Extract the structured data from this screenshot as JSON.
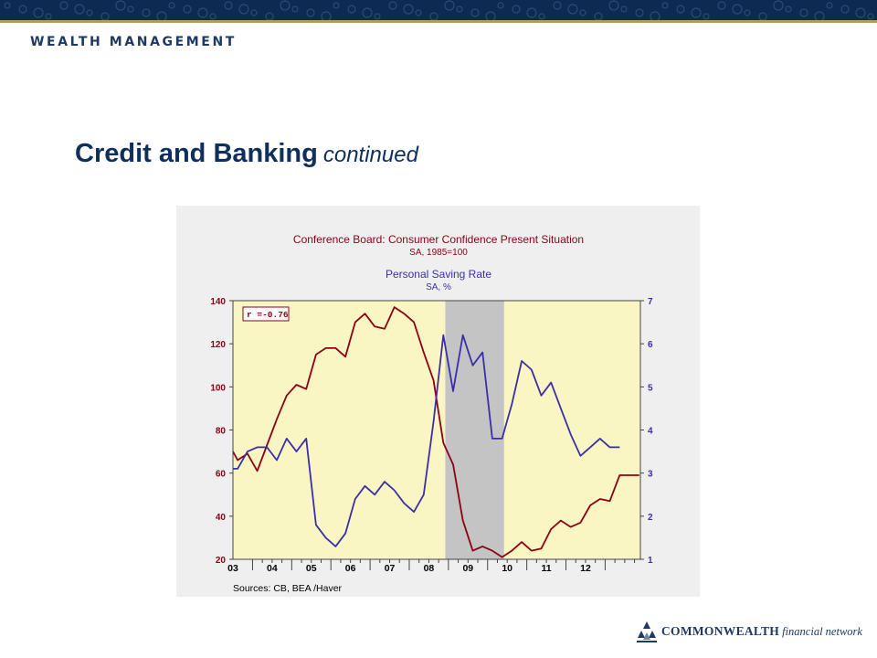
{
  "header": {
    "brand": "WEALTH MANAGEMENT"
  },
  "slide": {
    "title": "Credit and Banking",
    "subtitle": "continued"
  },
  "footer": {
    "logo_main": "COMMONWEALTH",
    "logo_sub": "financial network"
  },
  "colors": {
    "navy": "#0d2a52",
    "gold": "#b49a5c",
    "series_confidence": "#8b0016",
    "series_saving": "#3a2fa8",
    "plot_background": "#f9f6c4",
    "recession_shade": "#c4c4c4"
  },
  "chart_data": {
    "type": "line",
    "title": "Conference Board: Consumer Confidence Present Situation",
    "title_sub": "SA, 1985=100",
    "title2": "Personal Saving Rate",
    "title2_sub": "SA, %",
    "correlation_label": "r =-0.76",
    "source": "Sources:  CB, BEA /Haver",
    "x_tick_labels": [
      "03",
      "04",
      "05",
      "06",
      "07",
      "08",
      "09",
      "10",
      "11",
      "12"
    ],
    "x_tick_years": [
      2003,
      2004,
      2005,
      2006,
      2007,
      2008,
      2009,
      2010,
      2011,
      2012
    ],
    "xlim": [
      2002.5,
      2012.9
    ],
    "recession": [
      2007.92,
      2009.42
    ],
    "left_axis": {
      "ylim": [
        20,
        140
      ],
      "ticks": [
        20,
        40,
        60,
        80,
        100,
        120,
        140
      ]
    },
    "right_axis": {
      "ylim": [
        1,
        7
      ],
      "ticks": [
        1,
        2,
        3,
        4,
        5,
        6,
        7
      ]
    },
    "grid": false,
    "series": [
      {
        "name": "Conference Board: Consumer Confidence Present Situation",
        "axis": "left",
        "x": [
          2002.5,
          2002.62,
          2002.87,
          2003.12,
          2003.37,
          2003.62,
          2003.87,
          2004.12,
          2004.37,
          2004.62,
          2004.87,
          2005.12,
          2005.37,
          2005.62,
          2005.87,
          2006.12,
          2006.37,
          2006.62,
          2006.87,
          2007.12,
          2007.37,
          2007.62,
          2007.87,
          2008.12,
          2008.37,
          2008.62,
          2008.87,
          2009.12,
          2009.37,
          2009.62,
          2009.87,
          2010.12,
          2010.37,
          2010.62,
          2010.87,
          2011.12,
          2011.37,
          2011.62,
          2011.87,
          2012.12,
          2012.37,
          2012.62,
          2012.87
        ],
        "values": [
          70,
          66,
          69,
          61,
          73,
          85,
          96,
          101,
          99,
          115,
          118,
          118,
          114,
          130,
          134,
          128,
          127,
          137,
          134,
          130,
          116,
          103,
          74,
          64,
          38,
          24,
          26,
          24,
          21,
          24,
          28,
          24,
          25,
          34,
          38,
          35,
          37,
          45,
          48,
          47,
          59,
          59,
          59
        ]
      },
      {
        "name": "Personal Saving Rate",
        "axis": "right",
        "x": [
          2002.5,
          2002.62,
          2002.87,
          2003.12,
          2003.37,
          2003.62,
          2003.87,
          2004.12,
          2004.37,
          2004.62,
          2004.87,
          2005.12,
          2005.37,
          2005.62,
          2005.87,
          2006.12,
          2006.37,
          2006.62,
          2006.87,
          2007.12,
          2007.37,
          2007.62,
          2007.87,
          2008.12,
          2008.37,
          2008.62,
          2008.87,
          2009.12,
          2009.37,
          2009.62,
          2009.87,
          2010.12,
          2010.37,
          2010.62,
          2010.87,
          2011.12,
          2011.37,
          2011.62,
          2011.87,
          2012.12,
          2012.37
        ],
        "values": [
          3.1,
          3.1,
          3.5,
          3.6,
          3.6,
          3.3,
          3.8,
          3.5,
          3.8,
          1.8,
          1.5,
          1.3,
          1.6,
          2.4,
          2.7,
          2.5,
          2.8,
          2.6,
          2.3,
          2.1,
          2.5,
          4.2,
          6.2,
          4.9,
          6.2,
          5.5,
          5.8,
          3.8,
          3.8,
          4.6,
          5.6,
          5.4,
          4.8,
          5.1,
          4.5,
          3.9,
          3.4,
          3.6,
          3.8,
          3.6,
          3.6
        ]
      }
    ]
  }
}
